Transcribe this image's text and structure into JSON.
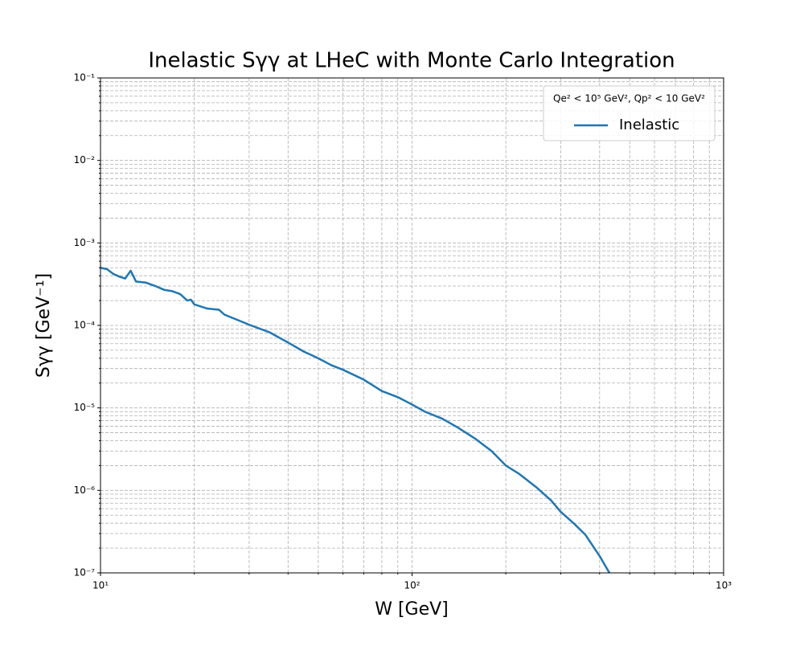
{
  "chart_data": {
    "type": "line",
    "title": "Inelastic Sγγ at LHeC with Monte Carlo Integration",
    "x_label": "W [GeV]",
    "y_label": "Sγγ [GeV⁻¹]",
    "legend_title": "Qe² < 10⁵ GeV², Qp² < 10 GeV²",
    "legend_position": "upper right",
    "x_scale": "log",
    "y_scale": "log",
    "grid": true,
    "xlim": [
      10,
      1000
    ],
    "ylim": [
      1e-07,
      0.1
    ],
    "xticks": [
      {
        "value": 10,
        "label": "10¹"
      },
      {
        "value": 100,
        "label": "10²"
      },
      {
        "value": 1000,
        "label": "10³"
      }
    ],
    "yticks": [
      {
        "value": 1e-07,
        "label": "10⁻⁷"
      },
      {
        "value": 1e-06,
        "label": "10⁻⁶"
      },
      {
        "value": 1e-05,
        "label": "10⁻⁵"
      },
      {
        "value": 0.0001,
        "label": "10⁻⁴"
      },
      {
        "value": 0.001,
        "label": "10⁻³"
      },
      {
        "value": 0.01,
        "label": "10⁻²"
      },
      {
        "value": 0.1,
        "label": "10⁻¹"
      }
    ],
    "xminorticks": [
      20,
      30,
      40,
      50,
      60,
      70,
      80,
      90,
      200,
      300,
      400,
      500,
      600,
      700,
      800,
      900
    ],
    "yminorticks": [
      2e-07,
      3e-07,
      4e-07,
      5e-07,
      6e-07,
      7e-07,
      8e-07,
      9e-07,
      2e-06,
      3e-06,
      4e-06,
      5e-06,
      6e-06,
      7e-06,
      8e-06,
      9e-06,
      2e-05,
      3e-05,
      4e-05,
      5e-05,
      6e-05,
      7e-05,
      8e-05,
      9e-05,
      0.0002,
      0.0003,
      0.0004,
      0.0005,
      0.0006,
      0.0007,
      0.0008,
      0.0009,
      0.002,
      0.003,
      0.004,
      0.005,
      0.006,
      0.007,
      0.008,
      0.009,
      0.02,
      0.03,
      0.04,
      0.05,
      0.06,
      0.07,
      0.08,
      0.09
    ],
    "x": [
      10,
      10.5,
      11,
      11.5,
      12,
      12.5,
      13,
      14,
      15,
      16,
      17,
      18,
      19,
      19.5,
      20,
      22,
      24,
      25,
      27,
      30,
      35,
      40,
      45,
      50,
      55,
      60,
      70,
      80,
      90,
      100,
      110,
      125,
      140,
      160,
      180,
      200,
      220,
      250,
      280,
      300,
      330,
      360,
      400,
      430
    ],
    "series": [
      {
        "name": "Inelastic",
        "color": "#1f77b4",
        "values": [
          0.0005,
          0.00048,
          0.00042,
          0.00039,
          0.00037,
          0.00046,
          0.00034,
          0.00033,
          0.0003,
          0.00027,
          0.00026,
          0.00024,
          0.0002,
          0.000205,
          0.00018,
          0.00016,
          0.000155,
          0.000135,
          0.00012,
          0.000102,
          8.2e-05,
          6.2e-05,
          4.8e-05,
          4e-05,
          3.3e-05,
          2.9e-05,
          2.2e-05,
          1.6e-05,
          1.35e-05,
          1.1e-05,
          9e-06,
          7.4e-06,
          5.8e-06,
          4.2e-06,
          3e-06,
          2e-06,
          1.6e-06,
          1.1e-06,
          7.5e-07,
          5.5e-07,
          4e-07,
          2.9e-07,
          1.6e-07,
          1e-07
        ]
      }
    ]
  }
}
